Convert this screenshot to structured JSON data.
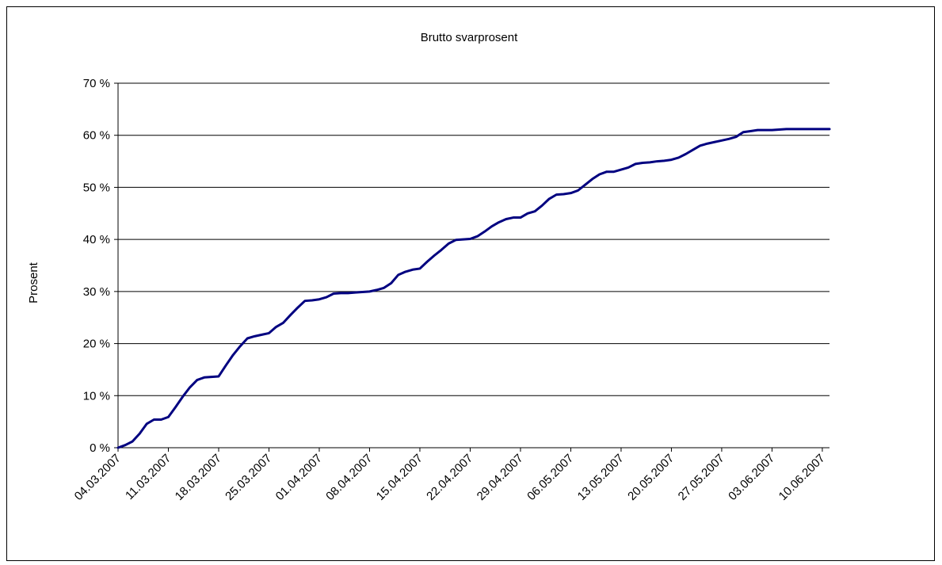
{
  "chart_data": {
    "type": "line",
    "title": "Brutto svarprosent",
    "xlabel": "",
    "ylabel": "Prosent",
    "ylim": [
      0,
      70
    ],
    "y_ticks": [
      0,
      10,
      20,
      30,
      40,
      50,
      60,
      70
    ],
    "y_tick_labels": [
      "0 %",
      "10 %",
      "20 %",
      "30 %",
      "40 %",
      "50 %",
      "60 %",
      "70 %"
    ],
    "x_range": [
      "04.03.2007",
      "11.06.2007"
    ],
    "x_tick_labels": [
      "04.03.2007",
      "11.03.2007",
      "18.03.2007",
      "25.03.2007",
      "01.04.2007",
      "08.04.2007",
      "15.04.2007",
      "22.04.2007",
      "29.04.2007",
      "06.05.2007",
      "13.05.2007",
      "20.05.2007",
      "27.05.2007",
      "03.06.2007",
      "10.06.2007"
    ],
    "grid": "horizontal",
    "line_color": "#000080",
    "series": [
      {
        "x": [
          "04.03.2007",
          "05.03.2007",
          "06.03.2007",
          "07.03.2007",
          "08.03.2007",
          "09.03.2007",
          "10.03.2007",
          "11.03.2007",
          "12.03.2007",
          "13.03.2007",
          "14.03.2007",
          "15.03.2007",
          "16.03.2007",
          "17.03.2007",
          "18.03.2007",
          "19.03.2007",
          "20.03.2007",
          "21.03.2007",
          "22.03.2007",
          "23.03.2007",
          "24.03.2007",
          "25.03.2007",
          "26.03.2007",
          "27.03.2007",
          "28.03.2007",
          "29.03.2007",
          "30.03.2007",
          "31.03.2007",
          "01.04.2007",
          "02.04.2007",
          "03.04.2007",
          "04.04.2007",
          "05.04.2007",
          "06.04.2007",
          "07.04.2007",
          "08.04.2007",
          "09.04.2007",
          "10.04.2007",
          "11.04.2007",
          "12.04.2007",
          "13.04.2007",
          "14.04.2007",
          "15.04.2007",
          "16.04.2007",
          "17.04.2007",
          "18.04.2007",
          "19.04.2007",
          "20.04.2007",
          "21.04.2007",
          "22.04.2007",
          "23.04.2007",
          "24.04.2007",
          "25.04.2007",
          "26.04.2007",
          "27.04.2007",
          "28.04.2007",
          "29.04.2007",
          "30.04.2007",
          "01.05.2007",
          "02.05.2007",
          "03.05.2007",
          "04.05.2007",
          "05.05.2007",
          "06.05.2007",
          "07.05.2007",
          "08.05.2007",
          "09.05.2007",
          "10.05.2007",
          "11.05.2007",
          "12.05.2007",
          "13.05.2007",
          "14.05.2007",
          "15.05.2007",
          "16.05.2007",
          "17.05.2007",
          "18.05.2007",
          "19.05.2007",
          "20.05.2007",
          "21.05.2007",
          "22.05.2007",
          "23.05.2007",
          "24.05.2007",
          "25.05.2007",
          "26.05.2007",
          "27.05.2007",
          "28.05.2007",
          "29.05.2007",
          "30.05.2007",
          "31.05.2007",
          "01.06.2007",
          "02.06.2007",
          "03.06.2007",
          "04.06.2007",
          "05.06.2007",
          "06.06.2007",
          "07.06.2007",
          "08.06.2007",
          "09.06.2007",
          "10.06.2007",
          "11.06.2007"
        ],
        "values": [
          0.0,
          0.5,
          1.2,
          2.7,
          4.6,
          5.4,
          5.4,
          5.9,
          7.8,
          9.8,
          11.6,
          13.0,
          13.5,
          13.6,
          13.7,
          15.8,
          17.8,
          19.5,
          21.0,
          21.4,
          21.7,
          22.0,
          23.2,
          24.0,
          25.5,
          26.9,
          28.2,
          28.3,
          28.5,
          28.9,
          29.6,
          29.7,
          29.7,
          29.8,
          29.9,
          30.0,
          30.3,
          30.7,
          31.6,
          33.2,
          33.8,
          34.2,
          34.4,
          35.7,
          36.9,
          38.0,
          39.2,
          39.9,
          40.0,
          40.1,
          40.6,
          41.5,
          42.5,
          43.3,
          43.9,
          44.2,
          44.2,
          45.0,
          45.4,
          46.5,
          47.8,
          48.6,
          48.7,
          48.9,
          49.4,
          50.5,
          51.6,
          52.5,
          53.0,
          53.0,
          53.4,
          53.8,
          54.5,
          54.7,
          54.8,
          55.0,
          55.1,
          55.3,
          55.7,
          56.4,
          57.2,
          58.0,
          58.4,
          58.7,
          59.0,
          59.3,
          59.7,
          60.6,
          60.8,
          61.0,
          61.0,
          61.0,
          61.1,
          61.2,
          61.2,
          61.2,
          61.2,
          61.2,
          61.2,
          61.2
        ]
      }
    ]
  }
}
